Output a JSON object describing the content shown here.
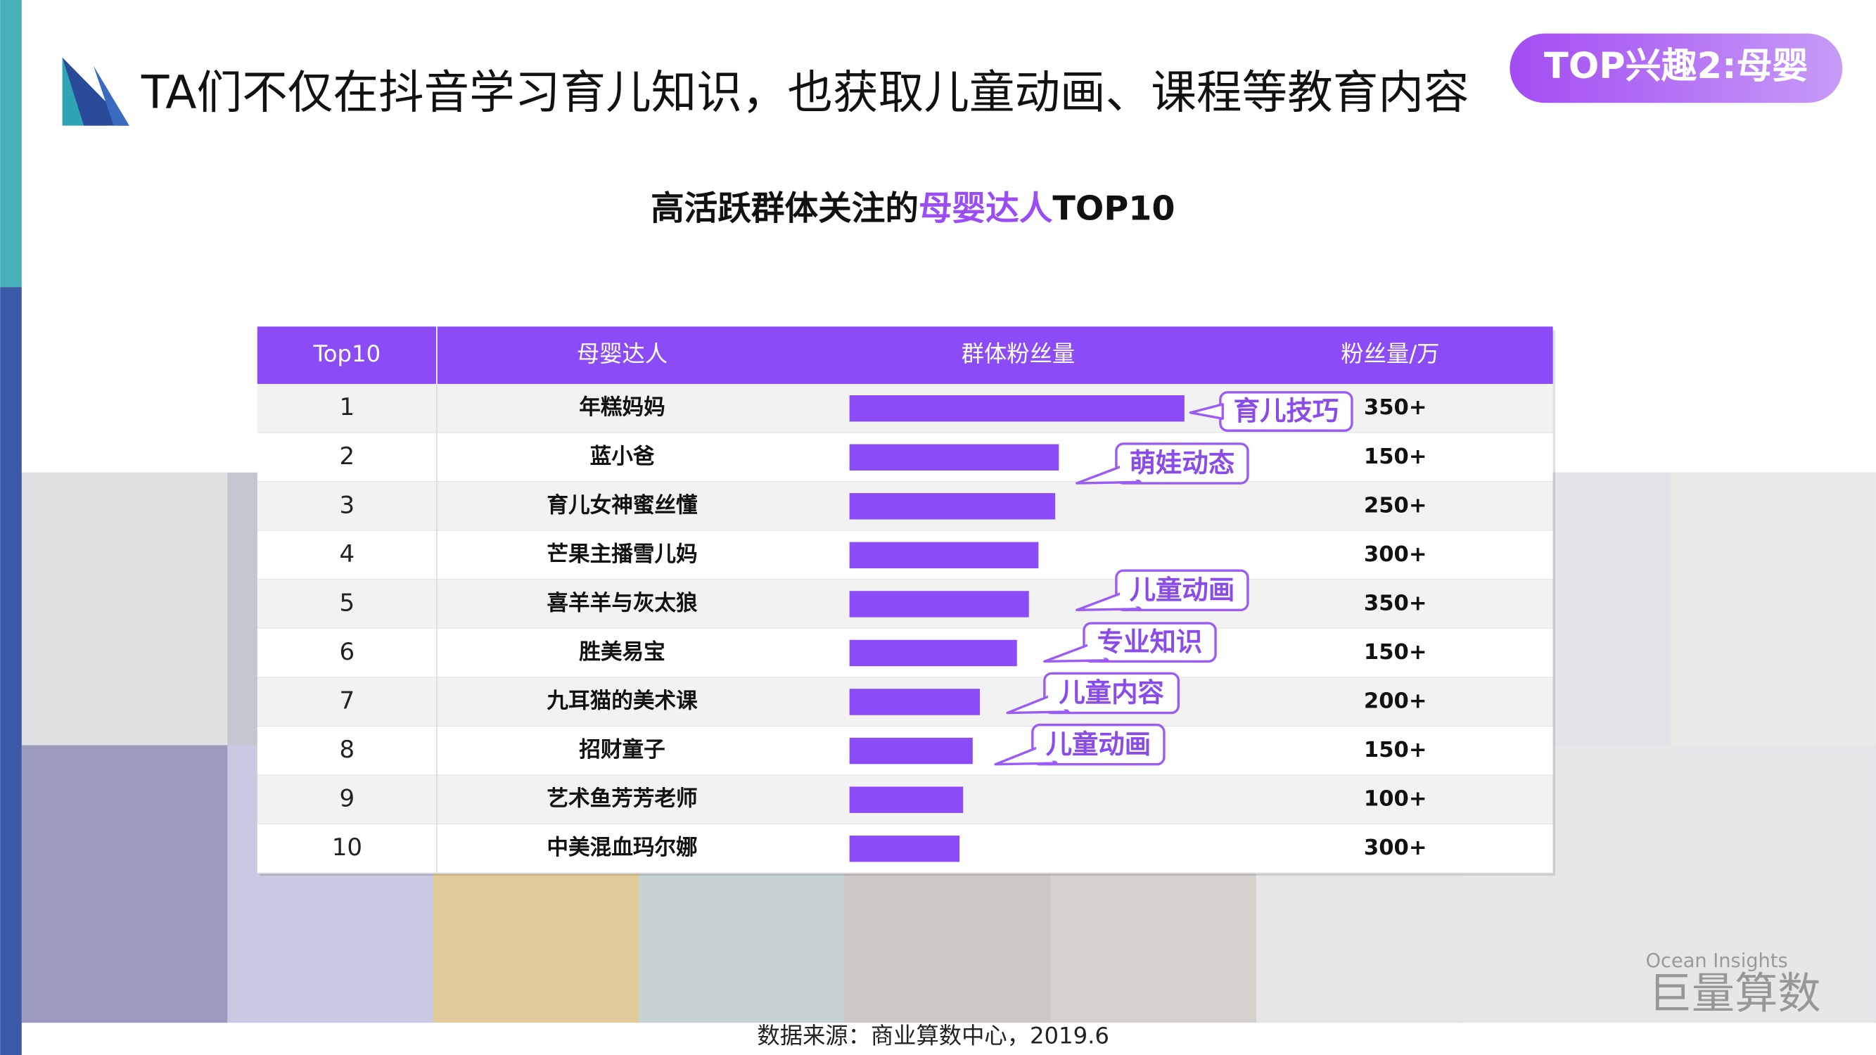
{
  "header": {
    "title": "TA们不仅在抖音学习育儿知识，也获取儿童动画、课程等教育内容",
    "badge": "TOP兴趣2:母婴"
  },
  "subtitle": {
    "before": "高活跃群体关注的",
    "highlight": "母婴达人",
    "after": "TOP10"
  },
  "table": {
    "columns": [
      "Top10",
      "母婴达人",
      "群体粉丝量",
      "粉丝量/万"
    ],
    "rows": [
      {
        "rank": 1,
        "name": "年糕妈妈",
        "bar": 280,
        "tag": "育儿技巧",
        "fans": "350+"
      },
      {
        "rank": 2,
        "name": "蓝小爸",
        "bar": 175,
        "tag": "萌娃动态",
        "fans": "150+"
      },
      {
        "rank": 3,
        "name": "育儿女神蜜丝懂",
        "bar": 172,
        "fans": "250+"
      },
      {
        "rank": 4,
        "name": "芒果主播雪儿妈",
        "bar": 158,
        "fans": "300+"
      },
      {
        "rank": 5,
        "name": "喜羊羊与灰太狼",
        "bar": 150,
        "tag": "儿童动画",
        "fans": "350+"
      },
      {
        "rank": 6,
        "name": "胜美易宝",
        "bar": 140,
        "tag": "专业知识",
        "fans": "150+"
      },
      {
        "rank": 7,
        "name": "九耳猫的美术课",
        "bar": 109,
        "tag": "儿童内容",
        "fans": "200+"
      },
      {
        "rank": 8,
        "name": "招财童子",
        "bar": 103,
        "tag": "儿童动画",
        "fans": "150+"
      },
      {
        "rank": 9,
        "name": "艺术鱼芳芳老师",
        "bar": 95,
        "fans": "100+"
      },
      {
        "rank": 10,
        "name": "中美混血玛尔娜",
        "bar": 92,
        "fans": "300+"
      }
    ]
  },
  "footer": {
    "source": "数据来源：商业算数中心，2019.6",
    "brand_en": "Ocean Insights",
    "brand": "巨量算数"
  }
}
